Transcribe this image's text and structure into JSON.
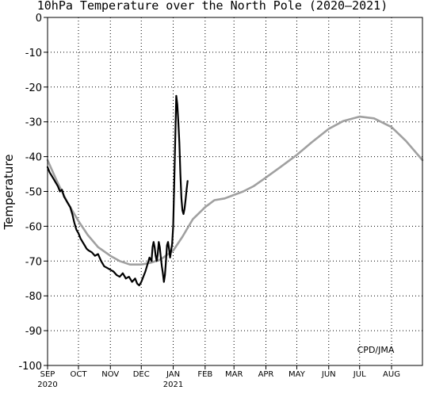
{
  "chart_data": {
    "type": "line",
    "title": "10hPa Temperature over the North Pole (2020–2021)",
    "ylabel": "Temperature",
    "xlabel": "",
    "ylim": [
      -100,
      0
    ],
    "yticks": [
      0,
      -10,
      -20,
      -30,
      -40,
      -50,
      -60,
      -70,
      -80,
      -90,
      -100
    ],
    "xlim": [
      "2020-09-01",
      "2021-08-31"
    ],
    "xticks": [
      {
        "date": "2020-09-01",
        "label": "SEP",
        "sublabel": "2020"
      },
      {
        "date": "2020-10-01",
        "label": "OCT",
        "sublabel": ""
      },
      {
        "date": "2020-11-01",
        "label": "NOV",
        "sublabel": ""
      },
      {
        "date": "2020-12-01",
        "label": "DEC",
        "sublabel": ""
      },
      {
        "date": "2021-01-01",
        "label": "JAN",
        "sublabel": "2021"
      },
      {
        "date": "2021-02-01",
        "label": "FEB",
        "sublabel": ""
      },
      {
        "date": "2021-03-01",
        "label": "MAR",
        "sublabel": ""
      },
      {
        "date": "2021-04-01",
        "label": "APR",
        "sublabel": ""
      },
      {
        "date": "2021-05-01",
        "label": "MAY",
        "sublabel": ""
      },
      {
        "date": "2021-06-01",
        "label": "JUN",
        "sublabel": ""
      },
      {
        "date": "2021-07-01",
        "label": "JUL",
        "sublabel": ""
      },
      {
        "date": "2021-08-01",
        "label": "AUG",
        "sublabel": ""
      }
    ],
    "grid": true,
    "annotation": "CPD/JMA",
    "series": [
      {
        "color": "#a0a0a0",
        "points": [
          [
            "2020-09-01",
            -41
          ],
          [
            "2020-09-10",
            -47
          ],
          [
            "2020-09-20",
            -53
          ],
          [
            "2020-10-01",
            -58.5
          ],
          [
            "2020-10-10",
            -62.5
          ],
          [
            "2020-10-20",
            -66
          ],
          [
            "2020-11-01",
            -68.5
          ],
          [
            "2020-11-10",
            -70
          ],
          [
            "2020-11-20",
            -71
          ],
          [
            "2020-12-01",
            -71
          ],
          [
            "2020-12-10",
            -70.5
          ],
          [
            "2020-12-20",
            -69.5
          ],
          [
            "2021-01-01",
            -67
          ],
          [
            "2021-01-10",
            -63
          ],
          [
            "2021-01-20",
            -58
          ],
          [
            "2021-02-01",
            -54.5
          ],
          [
            "2021-02-10",
            -52.5
          ],
          [
            "2021-02-20",
            -52
          ],
          [
            "2021-03-01",
            -51
          ],
          [
            "2021-03-10",
            -50
          ],
          [
            "2021-03-20",
            -48.5
          ],
          [
            "2021-04-01",
            -46
          ],
          [
            "2021-04-15",
            -43
          ],
          [
            "2021-05-01",
            -39.5
          ],
          [
            "2021-05-15",
            -36
          ],
          [
            "2021-06-01",
            -32
          ],
          [
            "2021-06-15",
            -29.8
          ],
          [
            "2021-07-01",
            -28.5
          ],
          [
            "2021-07-15",
            -29
          ],
          [
            "2021-08-01",
            -31.5
          ],
          [
            "2021-08-15",
            -35.5
          ],
          [
            "2021-08-31",
            -41
          ]
        ]
      },
      {
        "color": "#000000",
        "points": [
          [
            "2020-09-01",
            -43
          ],
          [
            "2020-09-03",
            -44.5
          ],
          [
            "2020-09-05",
            -45.5
          ],
          [
            "2020-09-07",
            -46.5
          ],
          [
            "2020-09-09",
            -47.5
          ],
          [
            "2020-09-11",
            -48.5
          ],
          [
            "2020-09-13",
            -50
          ],
          [
            "2020-09-15",
            -49.5
          ],
          [
            "2020-09-17",
            -51.5
          ],
          [
            "2020-09-19",
            -52.5
          ],
          [
            "2020-09-21",
            -53.5
          ],
          [
            "2020-09-23",
            -54.5
          ],
          [
            "2020-09-25",
            -56.5
          ],
          [
            "2020-09-27",
            -59
          ],
          [
            "2020-09-29",
            -61
          ],
          [
            "2020-10-01",
            -62
          ],
          [
            "2020-10-03",
            -63.5
          ],
          [
            "2020-10-05",
            -64.5
          ],
          [
            "2020-10-07",
            -65.5
          ],
          [
            "2020-10-09",
            -66.5
          ],
          [
            "2020-10-11",
            -67
          ],
          [
            "2020-10-14",
            -67.5
          ],
          [
            "2020-10-17",
            -68.5
          ],
          [
            "2020-10-20",
            -68
          ],
          [
            "2020-10-23",
            -70
          ],
          [
            "2020-10-26",
            -71.5
          ],
          [
            "2020-10-29",
            -72
          ],
          [
            "2020-11-01",
            -72.5
          ],
          [
            "2020-11-04",
            -73
          ],
          [
            "2020-11-07",
            -74
          ],
          [
            "2020-11-10",
            -74.5
          ],
          [
            "2020-11-13",
            -73.5
          ],
          [
            "2020-11-16",
            -75
          ],
          [
            "2020-11-19",
            -74.5
          ],
          [
            "2020-11-22",
            -76
          ],
          [
            "2020-11-25",
            -75
          ],
          [
            "2020-11-27",
            -76.5
          ],
          [
            "2020-11-29",
            -77
          ],
          [
            "2020-12-01",
            -76
          ],
          [
            "2020-12-03",
            -74.5
          ],
          [
            "2020-12-05",
            -73
          ],
          [
            "2020-12-07",
            -71
          ],
          [
            "2020-12-09",
            -69
          ],
          [
            "2020-12-11",
            -70
          ],
          [
            "2020-12-12",
            -66
          ],
          [
            "2020-12-13",
            -64.5
          ],
          [
            "2020-12-14",
            -66
          ],
          [
            "2020-12-15",
            -68.5
          ],
          [
            "2020-12-16",
            -70
          ],
          [
            "2020-12-17",
            -68
          ],
          [
            "2020-12-18",
            -64.5
          ],
          [
            "2020-12-19",
            -66
          ],
          [
            "2020-12-20",
            -69
          ],
          [
            "2020-12-21",
            -71.5
          ],
          [
            "2020-12-22",
            -73.5
          ],
          [
            "2020-12-23",
            -76
          ],
          [
            "2020-12-24",
            -74
          ],
          [
            "2020-12-25",
            -70
          ],
          [
            "2020-12-26",
            -65.5
          ],
          [
            "2020-12-27",
            -64.5
          ],
          [
            "2020-12-28",
            -66.5
          ],
          [
            "2020-12-29",
            -69
          ],
          [
            "2020-12-30",
            -67
          ],
          [
            "2020-12-31",
            -65
          ],
          [
            "2021-01-01",
            -60
          ],
          [
            "2021-01-02",
            -48
          ],
          [
            "2021-01-03",
            -35
          ],
          [
            "2021-01-04",
            -22.5
          ],
          [
            "2021-01-05",
            -25
          ],
          [
            "2021-01-06",
            -30
          ],
          [
            "2021-01-07",
            -36
          ],
          [
            "2021-01-08",
            -45
          ],
          [
            "2021-01-09",
            -52
          ],
          [
            "2021-01-10",
            -55.5
          ],
          [
            "2021-01-11",
            -56.5
          ],
          [
            "2021-01-12",
            -55
          ],
          [
            "2021-01-13",
            -52.5
          ],
          [
            "2021-01-14",
            -49.5
          ],
          [
            "2021-01-15",
            -47
          ]
        ]
      }
    ]
  }
}
